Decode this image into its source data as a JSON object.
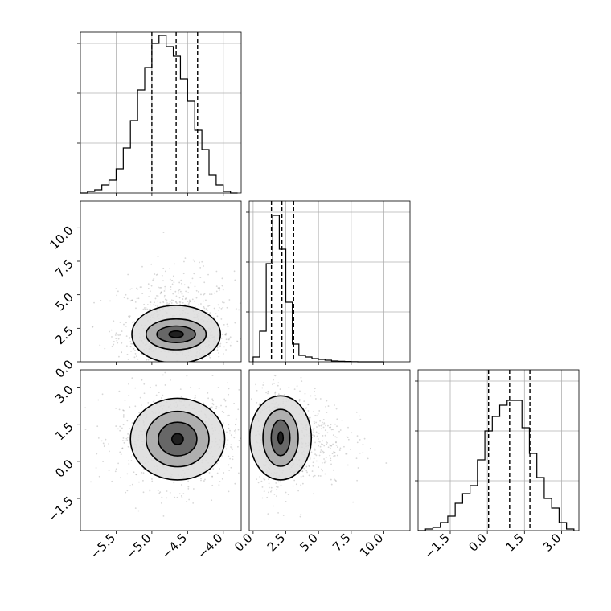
{
  "chart_data": [
    {
      "type": "histogram",
      "panel": "hist-p1",
      "xlim": [
        -6.0,
        -3.75
      ],
      "ylim": [
        0,
        1.0
      ],
      "x": [
        -6.0,
        -5.9,
        -5.8,
        -5.7,
        -5.6,
        -5.5,
        -5.4,
        -5.3,
        -5.2,
        -5.1,
        -5.0,
        -4.9,
        -4.8,
        -4.7,
        -4.6,
        -4.5,
        -4.4,
        -4.3,
        -4.2,
        -4.1,
        -4.0,
        -3.9,
        -3.8
      ],
      "values": [
        0.0,
        0.01,
        0.02,
        0.05,
        0.08,
        0.15,
        0.28,
        0.45,
        0.64,
        0.78,
        0.93,
        0.98,
        0.91,
        0.85,
        0.71,
        0.57,
        0.39,
        0.27,
        0.11,
        0.05,
        0.01,
        0.0
      ],
      "quantiles": [
        -5.0,
        -4.66,
        -4.36
      ],
      "grid": true
    },
    {
      "type": "histogram",
      "panel": "hist-p2",
      "xlim": [
        -0.3,
        12.0
      ],
      "ylim": [
        0,
        1.0
      ],
      "x": [
        0.0,
        0.5,
        1.0,
        1.5,
        2.0,
        2.5,
        3.0,
        3.5,
        4.0,
        4.5,
        5.0,
        5.5,
        6.0,
        6.5,
        7.0,
        7.5,
        8.0,
        8.5,
        9.0,
        9.5,
        10.0
      ],
      "values": [
        0.03,
        0.19,
        0.61,
        0.91,
        0.7,
        0.37,
        0.11,
        0.04,
        0.03,
        0.02,
        0.015,
        0.01,
        0.005,
        0.003,
        0.002,
        0.001,
        0.0,
        0.0,
        0.0,
        0.0
      ],
      "quantiles": [
        1.4,
        2.2,
        3.1
      ],
      "grid": true
    },
    {
      "type": "histogram",
      "panel": "hist-p3",
      "xlim": [
        -2.8,
        3.7
      ],
      "ylim": [
        0,
        1.0
      ],
      "x": [
        -2.8,
        -2.5,
        -2.2,
        -1.9,
        -1.6,
        -1.3,
        -1.0,
        -0.7,
        -0.4,
        -0.1,
        0.2,
        0.5,
        0.8,
        1.1,
        1.4,
        1.7,
        2.0,
        2.3,
        2.6,
        2.9,
        3.2,
        3.5
      ],
      "values": [
        0.0,
        0.01,
        0.02,
        0.05,
        0.09,
        0.17,
        0.23,
        0.28,
        0.44,
        0.62,
        0.71,
        0.78,
        0.81,
        0.81,
        0.64,
        0.48,
        0.33,
        0.2,
        0.14,
        0.05,
        0.01
      ],
      "quantiles": [
        0.05,
        0.9,
        1.72
      ],
      "grid": true
    },
    {
      "type": "scatter",
      "panel": "joint-p1-p2",
      "xlim": [
        -6.0,
        -3.75
      ],
      "ylim": [
        0.0,
        12.0
      ],
      "center": [
        -4.66,
        2.05
      ],
      "contour_levels": [
        {
          "rx": 0.62,
          "ry": 2.15
        },
        {
          "rx": 0.42,
          "ry": 1.15
        },
        {
          "rx": 0.27,
          "ry": 0.62
        },
        {
          "rx": 0.1,
          "ry": 0.25
        }
      ]
    },
    {
      "type": "scatter",
      "panel": "joint-p1-p3",
      "xlim": [
        -6.0,
        -3.75
      ],
      "ylim": [
        -2.8,
        3.7
      ],
      "center": [
        -4.64,
        0.9
      ],
      "contour_levels": [
        {
          "rx": 0.66,
          "ry": 1.65
        },
        {
          "rx": 0.44,
          "ry": 1.12
        },
        {
          "rx": 0.27,
          "ry": 0.68
        },
        {
          "rx": 0.08,
          "ry": 0.22
        }
      ]
    },
    {
      "type": "scatter",
      "panel": "joint-p2-p3",
      "xlim": [
        -0.3,
        12.0
      ],
      "ylim": [
        -2.8,
        3.7
      ],
      "center": [
        2.1,
        0.95
      ],
      "contour_levels": [
        {
          "rx": 2.35,
          "ry": 1.7
        },
        {
          "rx": 1.35,
          "ry": 1.15
        },
        {
          "rx": 0.72,
          "ry": 0.72
        },
        {
          "rx": 0.2,
          "ry": 0.24
        }
      ]
    }
  ],
  "axes": {
    "p1_ticks": [
      "−5.5",
      "−5.0",
      "−4.5",
      "−4.0"
    ],
    "p1_tick_values": [
      -5.5,
      -5.0,
      -4.5,
      -4.0
    ],
    "p2_ticks": [
      "0.0",
      "2.5",
      "5.0",
      "7.5",
      "10.0"
    ],
    "p2_tick_values": [
      0.0,
      2.5,
      5.0,
      7.5,
      10.0
    ],
    "p3_ticks": [
      "−1.5",
      "0.0",
      "1.5",
      "3.0"
    ],
    "p3_tick_values": [
      -1.5,
      0.0,
      1.5,
      3.0
    ]
  }
}
